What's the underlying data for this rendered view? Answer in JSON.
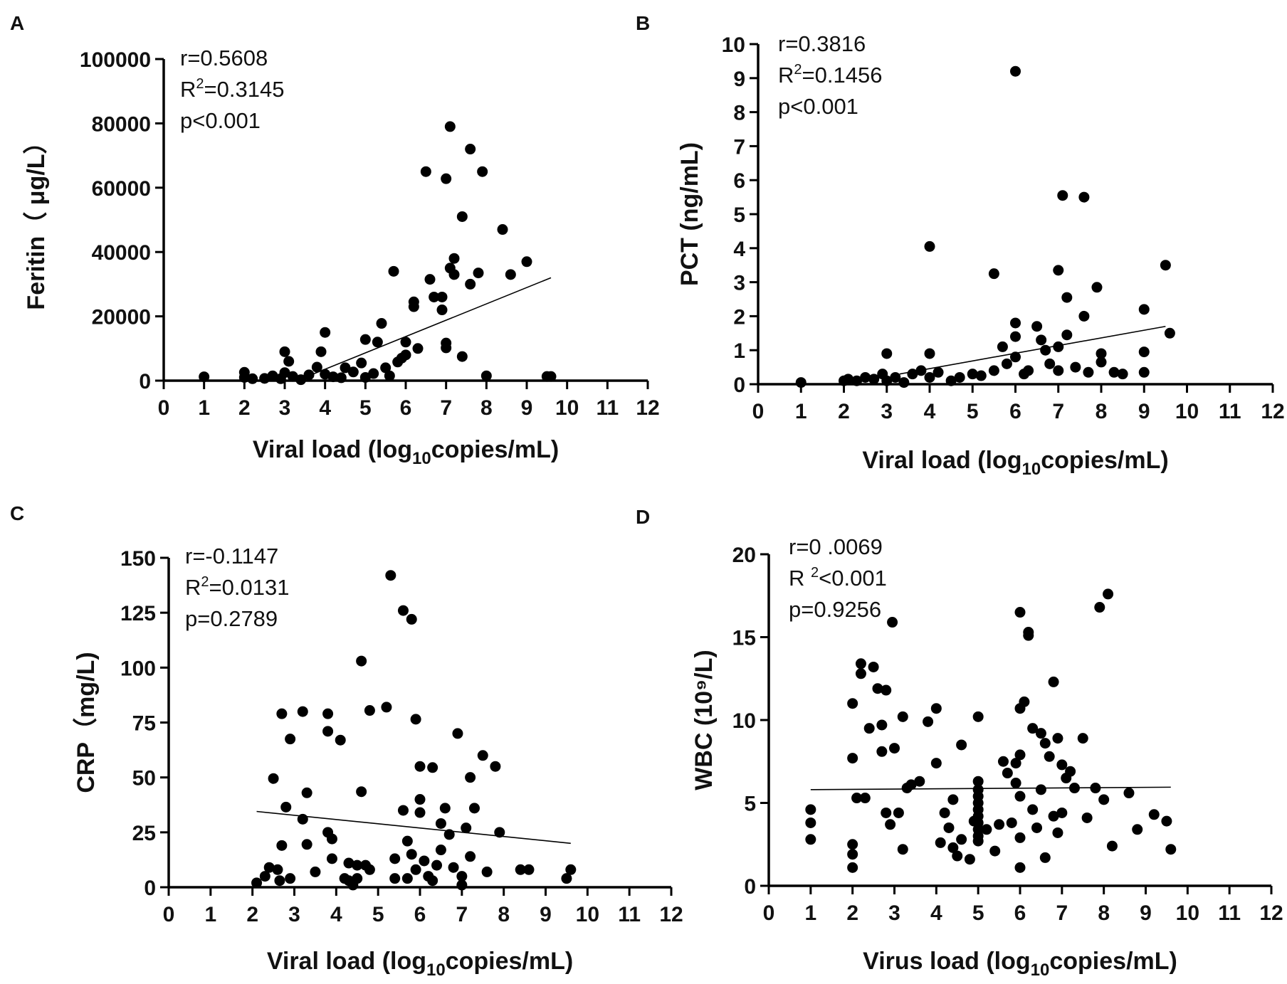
{
  "chart_data": [
    {
      "type": "scatter",
      "panel": "A",
      "title": "",
      "xlabel": {
        "pre": "Viral load (log",
        "sub": "10",
        "post": "copies/mL)"
      },
      "ylabel": "Feritin（ μg/L）",
      "xlim": [
        0,
        12
      ],
      "ylim": [
        0,
        100000
      ],
      "x_ticks": [
        "0",
        "1",
        "2",
        "3",
        "4",
        "5",
        "6",
        "7",
        "8",
        "9",
        "10",
        "11",
        "12"
      ],
      "y_ticks": [
        "0",
        "20000",
        "40000",
        "60000",
        "80000",
        "100000"
      ],
      "stats": {
        "r": "r=0.5608",
        "r2_pre": "R",
        "r2_sup": "2",
        "r2_post": "=0.3145",
        "p": "p<0.001"
      },
      "fit": [
        [
          3.3,
          0
        ],
        [
          9.6,
          32000
        ]
      ],
      "points": [
        [
          1,
          1200
        ],
        [
          2,
          2600
        ],
        [
          2,
          1000
        ],
        [
          2.2,
          600
        ],
        [
          2.5,
          700
        ],
        [
          2.7,
          1500
        ],
        [
          2.9,
          600
        ],
        [
          3,
          9000
        ],
        [
          3,
          2500
        ],
        [
          3.1,
          6000
        ],
        [
          3.2,
          1300
        ],
        [
          3.4,
          300
        ],
        [
          3.6,
          1800
        ],
        [
          3.8,
          4200
        ],
        [
          3.9,
          9000
        ],
        [
          4,
          15000
        ],
        [
          4,
          2000
        ],
        [
          4.2,
          1200
        ],
        [
          4.4,
          900
        ],
        [
          4.5,
          4000
        ],
        [
          4.7,
          2700
        ],
        [
          4.9,
          5500
        ],
        [
          5,
          12800
        ],
        [
          5,
          1000
        ],
        [
          5.2,
          2200
        ],
        [
          5.3,
          12000
        ],
        [
          5.4,
          17800
        ],
        [
          5.5,
          4000
        ],
        [
          5.6,
          1500
        ],
        [
          5.7,
          34000
        ],
        [
          5.8,
          5800
        ],
        [
          5.9,
          7000
        ],
        [
          6,
          12000
        ],
        [
          6,
          8000
        ],
        [
          6.2,
          24500
        ],
        [
          6.2,
          23000
        ],
        [
          6.3,
          10000
        ],
        [
          6.5,
          65000
        ],
        [
          6.6,
          31500
        ],
        [
          6.7,
          26000
        ],
        [
          6.9,
          22000
        ],
        [
          6.9,
          26000
        ],
        [
          7,
          62800
        ],
        [
          7,
          10200
        ],
        [
          7,
          11700
        ],
        [
          7.1,
          79000
        ],
        [
          7.1,
          35000
        ],
        [
          7.2,
          38000
        ],
        [
          7.2,
          33000
        ],
        [
          7.4,
          51000
        ],
        [
          7.4,
          7500
        ],
        [
          7.6,
          30000
        ],
        [
          7.6,
          72000
        ],
        [
          7.8,
          33500
        ],
        [
          7.9,
          65000
        ],
        [
          8,
          1500
        ],
        [
          8.4,
          47000
        ],
        [
          8.6,
          33000
        ],
        [
          9,
          37000
        ],
        [
          9.5,
          1300
        ],
        [
          9.6,
          1300
        ]
      ]
    },
    {
      "type": "scatter",
      "panel": "B",
      "title": "",
      "xlabel": {
        "pre": "Viral load (log",
        "sub": "10",
        "post": "copies/mL)"
      },
      "ylabel": "PCT (ng/mL)",
      "xlim": [
        0,
        12
      ],
      "ylim": [
        0,
        10
      ],
      "x_ticks": [
        "0",
        "1",
        "2",
        "3",
        "4",
        "5",
        "6",
        "7",
        "8",
        "9",
        "10",
        "11",
        "12"
      ],
      "y_ticks": [
        "0",
        "1",
        "2",
        "3",
        "4",
        "5",
        "6",
        "7",
        "8",
        "9",
        "10"
      ],
      "stats": {
        "r": "r=0.3816",
        "r2_pre": "R",
        "r2_sup": "2",
        "r2_post": "=0.1456",
        "p": "p<0.001"
      },
      "fit": [
        [
          3.3,
          0.3
        ],
        [
          9.5,
          1.7
        ]
      ],
      "points": [
        [
          1,
          0.05
        ],
        [
          2,
          0.1
        ],
        [
          2.1,
          0.15
        ],
        [
          2.3,
          0.1
        ],
        [
          2.5,
          0.2
        ],
        [
          2.7,
          0.15
        ],
        [
          2.9,
          0.3
        ],
        [
          3,
          0.9
        ],
        [
          3,
          0.1
        ],
        [
          3.2,
          0.2
        ],
        [
          3.4,
          0.05
        ],
        [
          3.6,
          0.3
        ],
        [
          3.8,
          0.4
        ],
        [
          4,
          4.05
        ],
        [
          4,
          0.9
        ],
        [
          4,
          0.2
        ],
        [
          4.2,
          0.35
        ],
        [
          4.5,
          0.1
        ],
        [
          4.7,
          0.2
        ],
        [
          5,
          0.3
        ],
        [
          5.2,
          0.25
        ],
        [
          5.5,
          3.25
        ],
        [
          5.5,
          0.4
        ],
        [
          5.7,
          1.1
        ],
        [
          5.8,
          0.6
        ],
        [
          6,
          9.2
        ],
        [
          6,
          1.8
        ],
        [
          6,
          1.4
        ],
        [
          6,
          0.8
        ],
        [
          6.2,
          0.3
        ],
        [
          6.3,
          0.4
        ],
        [
          6.5,
          1.7
        ],
        [
          6.6,
          1.3
        ],
        [
          6.7,
          1.0
        ],
        [
          6.8,
          0.6
        ],
        [
          7,
          3.35
        ],
        [
          7,
          1.1
        ],
        [
          7,
          0.4
        ],
        [
          7.1,
          5.55
        ],
        [
          7.2,
          1.45
        ],
        [
          7.2,
          2.55
        ],
        [
          7.4,
          0.5
        ],
        [
          7.6,
          5.5
        ],
        [
          7.6,
          2.0
        ],
        [
          7.7,
          0.35
        ],
        [
          7.9,
          2.85
        ],
        [
          8,
          0.9
        ],
        [
          8,
          0.65
        ],
        [
          8.3,
          0.35
        ],
        [
          8.5,
          0.3
        ],
        [
          9,
          2.2
        ],
        [
          9,
          0.95
        ],
        [
          9,
          0.35
        ],
        [
          9.5,
          3.5
        ],
        [
          9.6,
          1.5
        ]
      ]
    },
    {
      "type": "scatter",
      "panel": "C",
      "title": "",
      "xlabel": {
        "pre": "Viral load (log",
        "sub": "10",
        "post": "copies/mL)"
      },
      "ylabel": "CRP（mg/L)",
      "xlim": [
        0,
        12
      ],
      "ylim": [
        0,
        150
      ],
      "x_ticks": [
        "0",
        "1",
        "2",
        "3",
        "4",
        "5",
        "6",
        "7",
        "8",
        "9",
        "10",
        "11",
        "12"
      ],
      "y_ticks": [
        "0",
        "25",
        "50",
        "75",
        "100",
        "125",
        "150"
      ],
      "stats": {
        "r": "r=-0.1147",
        "r2_pre": "R",
        "r2_sup": "2",
        "r2_post": "=0.0131",
        "p": "p=0.2789"
      },
      "fit": [
        [
          2.1,
          34.5
        ],
        [
          9.6,
          20
        ]
      ],
      "points": [
        [
          2.1,
          2
        ],
        [
          2.3,
          5
        ],
        [
          2.4,
          9
        ],
        [
          2.5,
          49.5
        ],
        [
          2.6,
          8
        ],
        [
          2.65,
          3
        ],
        [
          2.7,
          19
        ],
        [
          2.7,
          79
        ],
        [
          2.8,
          36.5
        ],
        [
          2.9,
          67.5
        ],
        [
          2.9,
          4
        ],
        [
          3.2,
          80
        ],
        [
          3.2,
          31
        ],
        [
          3.3,
          19.5
        ],
        [
          3.3,
          43
        ],
        [
          3.5,
          7
        ],
        [
          3.8,
          79
        ],
        [
          3.8,
          71
        ],
        [
          3.8,
          25
        ],
        [
          3.9,
          22
        ],
        [
          3.9,
          13
        ],
        [
          4.1,
          67
        ],
        [
          4.2,
          4
        ],
        [
          4.3,
          3
        ],
        [
          4.3,
          11
        ],
        [
          4.4,
          1
        ],
        [
          4.5,
          10
        ],
        [
          4.5,
          4
        ],
        [
          4.6,
          43.5
        ],
        [
          4.6,
          103
        ],
        [
          4.7,
          10
        ],
        [
          4.8,
          80.5
        ],
        [
          4.8,
          8
        ],
        [
          5.2,
          82
        ],
        [
          5.3,
          142
        ],
        [
          5.4,
          4
        ],
        [
          5.4,
          13
        ],
        [
          5.6,
          126
        ],
        [
          5.6,
          35
        ],
        [
          5.7,
          4
        ],
        [
          5.7,
          21
        ],
        [
          5.8,
          122
        ],
        [
          5.8,
          15
        ],
        [
          5.9,
          76.5
        ],
        [
          5.9,
          8
        ],
        [
          6,
          55
        ],
        [
          6,
          34
        ],
        [
          6,
          40
        ],
        [
          6.1,
          12
        ],
        [
          6.2,
          5
        ],
        [
          6.3,
          54.5
        ],
        [
          6.3,
          3
        ],
        [
          6.4,
          10
        ],
        [
          6.5,
          29
        ],
        [
          6.5,
          17
        ],
        [
          6.6,
          36
        ],
        [
          6.7,
          24
        ],
        [
          6.8,
          9
        ],
        [
          6.9,
          70
        ],
        [
          7,
          5
        ],
        [
          7,
          1
        ],
        [
          7.1,
          27
        ],
        [
          7.2,
          50
        ],
        [
          7.2,
          14
        ],
        [
          7.3,
          36
        ],
        [
          7.5,
          60
        ],
        [
          7.6,
          7
        ],
        [
          7.8,
          55
        ],
        [
          7.9,
          25
        ],
        [
          8.4,
          8
        ],
        [
          8.6,
          8
        ],
        [
          9.5,
          4
        ],
        [
          9.6,
          8
        ]
      ]
    },
    {
      "type": "scatter",
      "panel": "D",
      "title": "",
      "xlabel": {
        "pre": "Virus load (log",
        "sub": "10",
        "post": "copies/mL)"
      },
      "ylabel": "WBC (10⁹/L)",
      "xlim": [
        0,
        12
      ],
      "ylim": [
        0,
        20
      ],
      "x_ticks": [
        "0",
        "1",
        "2",
        "3",
        "4",
        "5",
        "6",
        "7",
        "8",
        "9",
        "10",
        "11",
        "12"
      ],
      "y_ticks": [
        "0",
        "5",
        "10",
        "15",
        "20"
      ],
      "stats": {
        "r": "r=0 .0069",
        "r2_pre": "R ",
        "r2_sup": "2",
        "r2_post": "<0.001",
        "p": "p=0.9256"
      },
      "fit": [
        [
          1,
          5.8
        ],
        [
          9.6,
          5.95
        ]
      ],
      "points": [
        [
          1,
          4.6
        ],
        [
          1,
          3.8
        ],
        [
          1,
          2.8
        ],
        [
          2,
          11
        ],
        [
          2,
          7.7
        ],
        [
          2,
          2.5
        ],
        [
          2,
          1.9
        ],
        [
          2,
          1.1
        ],
        [
          2.1,
          5.3
        ],
        [
          2.2,
          12.8
        ],
        [
          2.2,
          13.4
        ],
        [
          2.3,
          5.3
        ],
        [
          2.4,
          9.5
        ],
        [
          2.5,
          13.2
        ],
        [
          2.6,
          11.9
        ],
        [
          2.7,
          8.1
        ],
        [
          2.7,
          9.7
        ],
        [
          2.8,
          11.8
        ],
        [
          2.8,
          4.4
        ],
        [
          2.9,
          3.7
        ],
        [
          2.95,
          15.9
        ],
        [
          3,
          8.3
        ],
        [
          3.1,
          4.4
        ],
        [
          3.2,
          2.2
        ],
        [
          3.2,
          10.2
        ],
        [
          3.3,
          5.9
        ],
        [
          3.4,
          6.1
        ],
        [
          3.6,
          6.3
        ],
        [
          3.8,
          9.9
        ],
        [
          4,
          10.7
        ],
        [
          4,
          7.4
        ],
        [
          4.1,
          2.6
        ],
        [
          4.2,
          4.4
        ],
        [
          4.3,
          3.5
        ],
        [
          4.4,
          5.2
        ],
        [
          4.4,
          2.3
        ],
        [
          4.5,
          1.8
        ],
        [
          4.6,
          8.5
        ],
        [
          4.6,
          2.8
        ],
        [
          4.8,
          1.6
        ],
        [
          4.9,
          3.9
        ],
        [
          5,
          6.3
        ],
        [
          5,
          5.8
        ],
        [
          5,
          5.4
        ],
        [
          5,
          5
        ],
        [
          5,
          4.6
        ],
        [
          5,
          4.2
        ],
        [
          5,
          3.8
        ],
        [
          5,
          3.4
        ],
        [
          5,
          3
        ],
        [
          5,
          2.7
        ],
        [
          5,
          10.2
        ],
        [
          5.2,
          3.4
        ],
        [
          5.4,
          2.1
        ],
        [
          5.5,
          3.7
        ],
        [
          5.6,
          7.5
        ],
        [
          5.7,
          6.8
        ],
        [
          5.8,
          3.8
        ],
        [
          5.9,
          7.4
        ],
        [
          5.9,
          6.2
        ],
        [
          6,
          10.7
        ],
        [
          6,
          7.9
        ],
        [
          6,
          5.4
        ],
        [
          6,
          2.9
        ],
        [
          6,
          1.1
        ],
        [
          6,
          16.5
        ],
        [
          6.1,
          11.1
        ],
        [
          6.2,
          15.3
        ],
        [
          6.2,
          15.1
        ],
        [
          6.3,
          9.5
        ],
        [
          6.3,
          4.6
        ],
        [
          6.4,
          3.5
        ],
        [
          6.5,
          9.2
        ],
        [
          6.5,
          5.8
        ],
        [
          6.6,
          8.6
        ],
        [
          6.6,
          1.7
        ],
        [
          6.7,
          7.8
        ],
        [
          6.8,
          12.3
        ],
        [
          6.8,
          4.2
        ],
        [
          6.9,
          8.9
        ],
        [
          6.9,
          3.2
        ],
        [
          7,
          7.3
        ],
        [
          7,
          4.4
        ],
        [
          7.1,
          6.5
        ],
        [
          7.2,
          6.9
        ],
        [
          7.3,
          5.9
        ],
        [
          7.5,
          8.9
        ],
        [
          7.6,
          4.1
        ],
        [
          7.8,
          5.9
        ],
        [
          7.9,
          16.8
        ],
        [
          8,
          5.2
        ],
        [
          8.1,
          17.6
        ],
        [
          8.2,
          2.4
        ],
        [
          8.6,
          5.6
        ],
        [
          8.8,
          3.4
        ],
        [
          9.2,
          4.3
        ],
        [
          9.5,
          3.9
        ],
        [
          9.6,
          2.2
        ]
      ]
    }
  ]
}
